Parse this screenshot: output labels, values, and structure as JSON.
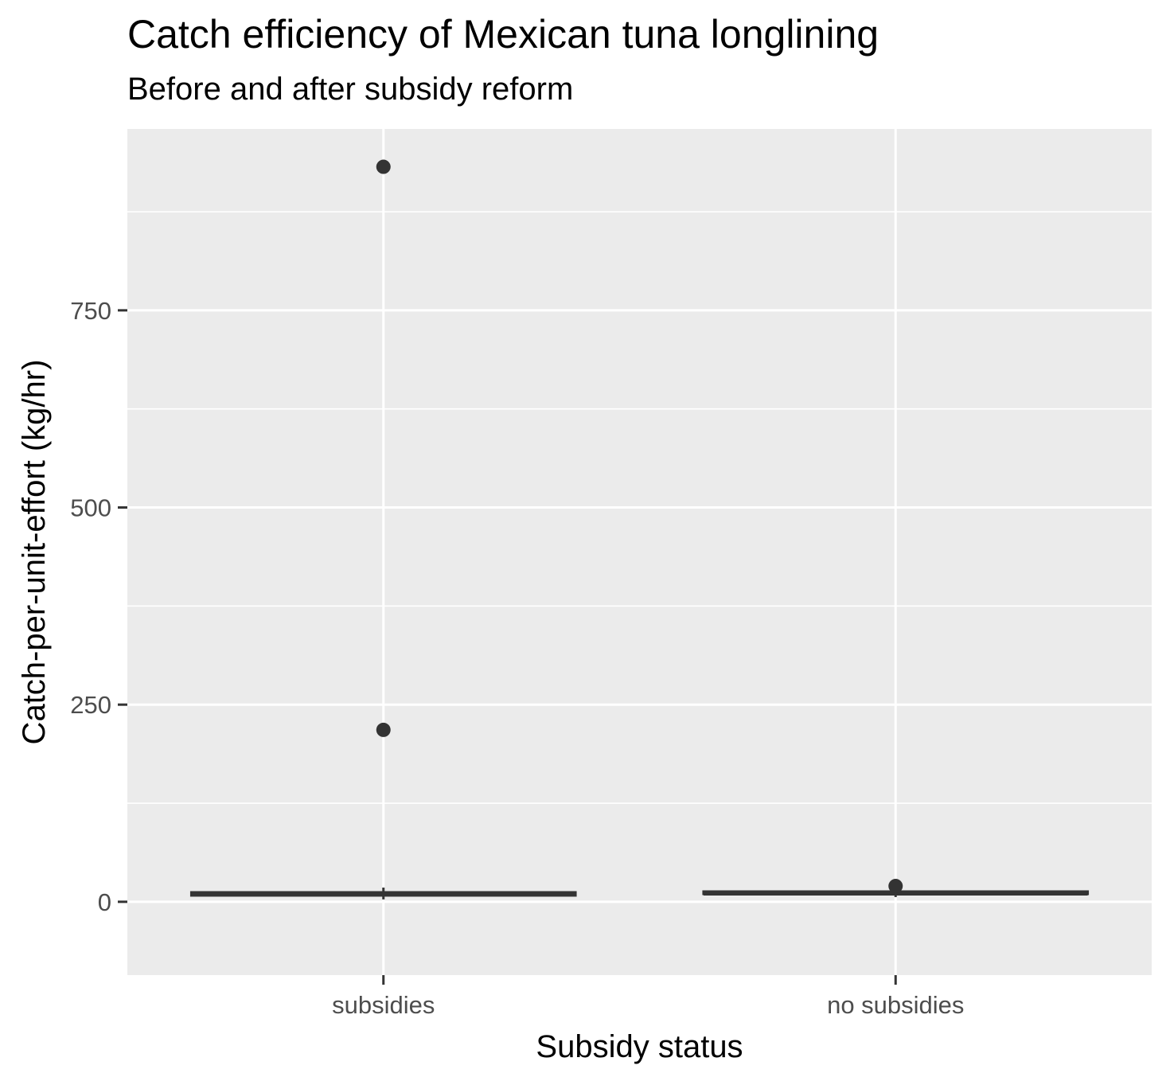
{
  "chart_data": {
    "type": "boxplot",
    "title": "Catch efficiency of Mexican tuna longlining",
    "subtitle": "Before and after subsidy reform",
    "xlabel": "Subsidy status",
    "ylabel": "Catch-per-unit-effort (kg/hr)",
    "categories": [
      "subsidies",
      "no subsidies"
    ],
    "ylim": [
      -93,
      980
    ],
    "yticks": [
      0,
      250,
      500,
      750
    ],
    "grid": true,
    "boxes": [
      {
        "category": "subsidies",
        "min": 3,
        "q1": 8,
        "median": 10,
        "q3": 12,
        "max": 18,
        "outliers": [
          932,
          218
        ]
      },
      {
        "category": "no subsidies",
        "min": 6,
        "q1": 10,
        "median": 11,
        "q3": 13,
        "max": 18,
        "outliers": [
          20
        ]
      }
    ],
    "colors": {
      "panel": "#ebebeb",
      "grid": "#ffffff",
      "mark": "#333333"
    }
  }
}
